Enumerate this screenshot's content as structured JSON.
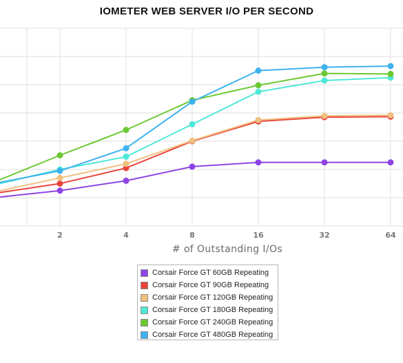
{
  "chart_data": {
    "type": "line",
    "title": "IOMETER WEB SERVER I/O PER SECOND",
    "xlabel": "# of Outstanding I/Os",
    "ylabel": "",
    "x": [
      1,
      2,
      4,
      8,
      16,
      32,
      64
    ],
    "xtick_labels": [
      "2",
      "4",
      "8",
      "16",
      "32",
      "64"
    ],
    "xscale": "log2",
    "ylim": [
      0,
      7
    ],
    "grid": true,
    "legend_position": "bottom",
    "series": [
      {
        "name": "Corsair Force GT 60GB Repeating",
        "color": "#8e44e4",
        "values": [
          1.0,
          1.25,
          1.6,
          2.1,
          2.25,
          2.25,
          2.25
        ]
      },
      {
        "name": "Corsair Force GT 90GB Repeating",
        "color": "#e8453c",
        "values": [
          1.15,
          1.5,
          2.05,
          3.0,
          3.7,
          3.85,
          3.87
        ]
      },
      {
        "name": "Corsair Force GT 120GB Repeating",
        "color": "#f0c080",
        "values": [
          1.2,
          1.7,
          2.2,
          3.02,
          3.75,
          3.9,
          3.92
        ]
      },
      {
        "name": "Corsair Force GT 180GB Repeating",
        "color": "#4ee8d8",
        "values": [
          1.45,
          2.0,
          2.45,
          3.6,
          4.75,
          5.15,
          5.25
        ]
      },
      {
        "name": "Corsair Force GT 240GB Repeating",
        "color": "#6cc832",
        "values": [
          1.55,
          2.5,
          3.4,
          4.45,
          4.98,
          5.4,
          5.38
        ]
      },
      {
        "name": "Corsair Force GT 480GB Repeating",
        "color": "#3eb2ee",
        "values": [
          1.5,
          1.95,
          2.75,
          4.4,
          5.5,
          5.62,
          5.66
        ]
      }
    ]
  }
}
